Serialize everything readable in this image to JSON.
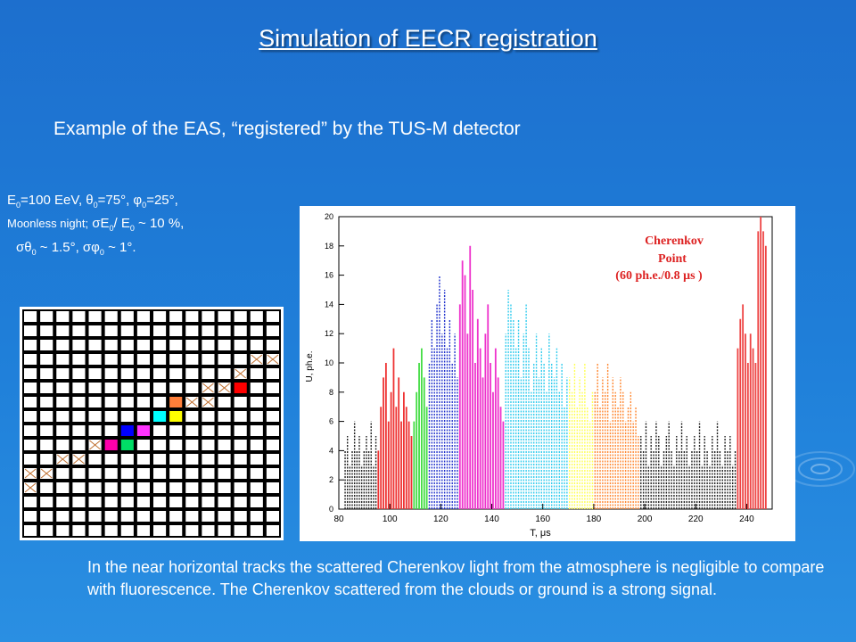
{
  "slide": {
    "title": "Simulation of EECR registration",
    "subtitle": "Example of the EAS, “registered” by the TUS-M detector",
    "params": {
      "e0": "=100 EeV, θ",
      "theta": "=75°, φ",
      "phi": "=25°,",
      "line2_lead": "Moonless night;",
      "line2_rest": " σE",
      "line2_mid": "/ E",
      "line2_tail": " ~ 10 %,",
      "line3_a": "σθ",
      "line3_b": " ~ 1.5°, σφ",
      "line3_c": " ~ 1°.",
      "sub0": "0"
    },
    "footer": "In the near horizontal tracks the scattered Cherenkov light from the atmosphere is negligible to compare with fluorescence. The Cherenkov  scattered from the clouds or ground is a strong signal."
  },
  "pixel_grid": {
    "rows": 16,
    "cols": 16,
    "crossed": [
      [
        3,
        15
      ],
      [
        3,
        14
      ],
      [
        4,
        13
      ],
      [
        5,
        11
      ],
      [
        5,
        12
      ],
      [
        6,
        11
      ],
      [
        6,
        10
      ],
      [
        9,
        4
      ],
      [
        10,
        3
      ],
      [
        10,
        2
      ],
      [
        11,
        1
      ],
      [
        11,
        0
      ],
      [
        12,
        0
      ]
    ],
    "colored": [
      {
        "r": 5,
        "c": 13,
        "color": "#ff0000"
      },
      {
        "r": 6,
        "c": 9,
        "color": "#ff7f3a"
      },
      {
        "r": 7,
        "c": 8,
        "color": "#00ffff"
      },
      {
        "r": 7,
        "c": 9,
        "color": "#ffff00"
      },
      {
        "r": 8,
        "c": 6,
        "color": "#0000ff"
      },
      {
        "r": 8,
        "c": 7,
        "color": "#ff33ff"
      },
      {
        "r": 9,
        "c": 5,
        "color": "#ff00aa"
      },
      {
        "r": 9,
        "c": 6,
        "color": "#00dd66"
      }
    ]
  },
  "plot": {
    "ylabel": "U, ph.e.",
    "xlabel": "T, μs",
    "x_ticks": [
      "80",
      "100",
      "120",
      "140",
      "160",
      "180",
      "200",
      "220",
      "240"
    ],
    "y_ticks": [
      "0",
      "2",
      "4",
      "6",
      "8",
      "10",
      "12",
      "14",
      "16",
      "18",
      "20"
    ],
    "annotation_line1": "Cherenkov",
    "annotation_line2": "Point",
    "annotation_line3": "(60 ph.e./0.8 μs )",
    "x_range": [
      80,
      250
    ],
    "y_range": [
      0,
      20
    ],
    "segments": [
      {
        "from": 82,
        "to": 95,
        "color": "#222222",
        "style": "dashed",
        "heights": [
          4,
          5,
          3,
          4,
          6,
          4,
          5,
          3,
          4,
          5,
          4,
          6,
          3,
          5
        ]
      },
      {
        "from": 95,
        "to": 109,
        "color": "#ee3333",
        "style": "solid",
        "heights": [
          4,
          7,
          9,
          10,
          6,
          8,
          11,
          7,
          9,
          6,
          8,
          7,
          6,
          5
        ]
      },
      {
        "from": 109,
        "to": 115,
        "color": "#44dd44",
        "style": "solid",
        "heights": [
          6,
          8,
          10,
          11,
          9,
          7
        ]
      },
      {
        "from": 115,
        "to": 127,
        "color": "#2233cc",
        "style": "dashed",
        "heights": [
          10,
          13,
          11,
          14,
          16,
          12,
          15,
          11,
          13,
          10,
          12,
          9
        ]
      },
      {
        "from": 127,
        "to": 145,
        "color": "#ee33cc",
        "style": "solid",
        "heights": [
          14,
          17,
          16,
          12,
          18,
          15,
          10,
          13,
          11,
          9,
          12,
          14,
          10,
          8,
          11,
          9,
          7,
          6
        ]
      },
      {
        "from": 145,
        "to": 170,
        "color": "#33ccee",
        "style": "dashed",
        "heights": [
          12,
          15,
          14,
          13,
          11,
          13,
          9,
          12,
          14,
          11,
          8,
          10,
          12,
          9,
          11,
          10,
          8,
          12,
          10,
          9,
          11,
          8,
          10,
          7,
          9
        ]
      },
      {
        "from": 170,
        "to": 180,
        "color": "#ffff55",
        "style": "dashed",
        "heights": [
          9,
          8,
          10,
          7,
          9,
          8,
          10,
          7,
          6,
          8
        ]
      },
      {
        "from": 180,
        "to": 198,
        "color": "#ff8833",
        "style": "dashed",
        "heights": [
          8,
          10,
          7,
          9,
          8,
          10,
          6,
          9,
          8,
          7,
          9,
          8,
          6,
          7,
          8,
          6,
          7,
          5
        ]
      },
      {
        "from": 198,
        "to": 236,
        "color": "#222222",
        "style": "dashed",
        "heights": [
          5,
          4,
          6,
          3,
          5,
          4,
          6,
          5,
          3,
          4,
          5,
          6,
          4,
          3,
          5,
          4,
          6,
          4,
          5,
          3,
          4,
          5,
          4,
          6,
          3,
          5,
          4,
          3,
          5,
          4,
          6,
          4,
          3,
          5,
          4,
          5,
          3,
          4
        ]
      },
      {
        "from": 236,
        "to": 244,
        "color": "#ee4444",
        "style": "solid",
        "heights": [
          11,
          13,
          14,
          12,
          10,
          12,
          11,
          10
        ]
      },
      {
        "from": 244,
        "to": 248,
        "color": "#ee4444",
        "style": "solid",
        "heights": [
          19,
          20,
          19,
          18
        ]
      }
    ]
  }
}
